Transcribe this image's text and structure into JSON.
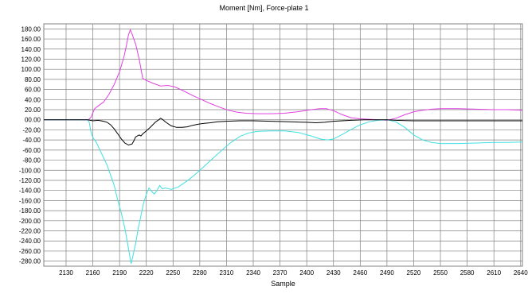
{
  "chart_data": {
    "type": "line",
    "title": "Moment [Nm], Force-plate 1",
    "xlabel": "Sample",
    "ylabel": "",
    "xlim": [
      2105,
      2642
    ],
    "ylim": [
      -290,
      190
    ],
    "grid": true,
    "x_ticks": [
      "2130",
      "2160",
      "2190",
      "2220",
      "2250",
      "2280",
      "2310",
      "2340",
      "2370",
      "2400",
      "2430",
      "2460",
      "2490",
      "2520",
      "2550",
      "2580",
      "2610",
      "2640"
    ],
    "x_tick_values": [
      2130,
      2160,
      2190,
      2220,
      2250,
      2280,
      2310,
      2340,
      2370,
      2400,
      2430,
      2460,
      2490,
      2520,
      2550,
      2580,
      2610,
      2640
    ],
    "y_ticks": [
      "180.00",
      "160.00",
      "140.00",
      "120.00",
      "100.00",
      "80.00",
      "60.00",
      "40.00",
      "20.00",
      "00.00",
      "-20.00",
      "-40.00",
      "-60.00",
      "-80.00",
      "-100.00",
      "-120.00",
      "-140.00",
      "-160.00",
      "-180.00",
      "-200.00",
      "-220.00",
      "-240.00",
      "-260.00",
      "-280.00"
    ],
    "y_tick_values": [
      180,
      160,
      140,
      120,
      100,
      80,
      60,
      40,
      20,
      0,
      -20,
      -40,
      -60,
      -80,
      -100,
      -120,
      -140,
      -160,
      -180,
      -200,
      -220,
      -240,
      -260,
      -280
    ],
    "series": [
      {
        "color": "#e040e0",
        "points": [
          [
            2105,
            0
          ],
          [
            2155,
            0
          ],
          [
            2158,
            5
          ],
          [
            2162,
            22
          ],
          [
            2168,
            30
          ],
          [
            2172,
            35
          ],
          [
            2178,
            50
          ],
          [
            2184,
            70
          ],
          [
            2190,
            95
          ],
          [
            2195,
            125
          ],
          [
            2198,
            150
          ],
          [
            2200,
            168
          ],
          [
            2202,
            178
          ],
          [
            2204,
            170
          ],
          [
            2208,
            150
          ],
          [
            2212,
            120
          ],
          [
            2216,
            82
          ],
          [
            2220,
            78
          ],
          [
            2228,
            72
          ],
          [
            2236,
            67
          ],
          [
            2244,
            68
          ],
          [
            2252,
            65
          ],
          [
            2262,
            57
          ],
          [
            2272,
            48
          ],
          [
            2282,
            40
          ],
          [
            2292,
            32
          ],
          [
            2302,
            25
          ],
          [
            2312,
            19
          ],
          [
            2322,
            15
          ],
          [
            2332,
            13
          ],
          [
            2345,
            12
          ],
          [
            2360,
            12
          ],
          [
            2375,
            13
          ],
          [
            2390,
            16
          ],
          [
            2405,
            20
          ],
          [
            2415,
            22
          ],
          [
            2422,
            22
          ],
          [
            2430,
            18
          ],
          [
            2440,
            10
          ],
          [
            2450,
            4
          ],
          [
            2460,
            2
          ],
          [
            2470,
            1
          ],
          [
            2480,
            0
          ],
          [
            2490,
            -1
          ],
          [
            2500,
            3
          ],
          [
            2510,
            10
          ],
          [
            2520,
            16
          ],
          [
            2530,
            19
          ],
          [
            2540,
            21
          ],
          [
            2550,
            22
          ],
          [
            2570,
            22
          ],
          [
            2590,
            21
          ],
          [
            2610,
            20
          ],
          [
            2625,
            20
          ],
          [
            2642,
            19
          ]
        ]
      },
      {
        "color": "#40e0e0",
        "points": [
          [
            2105,
            0
          ],
          [
            2154,
            0
          ],
          [
            2156,
            -5
          ],
          [
            2158,
            -25
          ],
          [
            2160,
            -35
          ],
          [
            2164,
            -45
          ],
          [
            2168,
            -60
          ],
          [
            2172,
            -75
          ],
          [
            2176,
            -90
          ],
          [
            2180,
            -110
          ],
          [
            2184,
            -130
          ],
          [
            2188,
            -160
          ],
          [
            2192,
            -185
          ],
          [
            2196,
            -215
          ],
          [
            2199,
            -245
          ],
          [
            2201,
            -265
          ],
          [
            2203,
            -285
          ],
          [
            2205,
            -270
          ],
          [
            2208,
            -245
          ],
          [
            2211,
            -215
          ],
          [
            2214,
            -190
          ],
          [
            2217,
            -165
          ],
          [
            2220,
            -148
          ],
          [
            2223,
            -135
          ],
          [
            2226,
            -142
          ],
          [
            2229,
            -147
          ],
          [
            2232,
            -140
          ],
          [
            2235,
            -130
          ],
          [
            2238,
            -137
          ],
          [
            2241,
            -135
          ],
          [
            2248,
            -138
          ],
          [
            2256,
            -133
          ],
          [
            2265,
            -122
          ],
          [
            2275,
            -108
          ],
          [
            2285,
            -92
          ],
          [
            2295,
            -76
          ],
          [
            2305,
            -60
          ],
          [
            2315,
            -45
          ],
          [
            2325,
            -33
          ],
          [
            2335,
            -26
          ],
          [
            2345,
            -23
          ],
          [
            2360,
            -22
          ],
          [
            2375,
            -22
          ],
          [
            2390,
            -25
          ],
          [
            2405,
            -32
          ],
          [
            2415,
            -38
          ],
          [
            2423,
            -40
          ],
          [
            2430,
            -38
          ],
          [
            2440,
            -29
          ],
          [
            2450,
            -19
          ],
          [
            2460,
            -10
          ],
          [
            2470,
            -4
          ],
          [
            2480,
            -1
          ],
          [
            2490,
            0
          ],
          [
            2500,
            -4
          ],
          [
            2510,
            -15
          ],
          [
            2520,
            -30
          ],
          [
            2530,
            -40
          ],
          [
            2540,
            -45
          ],
          [
            2550,
            -47
          ],
          [
            2570,
            -47
          ],
          [
            2590,
            -46
          ],
          [
            2610,
            -45
          ],
          [
            2625,
            -45
          ],
          [
            2642,
            -44
          ]
        ]
      },
      {
        "color": "#000000",
        "points": [
          [
            2105,
            0
          ],
          [
            2154,
            0
          ],
          [
            2160,
            -2
          ],
          [
            2166,
            -1
          ],
          [
            2172,
            -3
          ],
          [
            2176,
            -5
          ],
          [
            2180,
            -10
          ],
          [
            2184,
            -18
          ],
          [
            2188,
            -28
          ],
          [
            2192,
            -38
          ],
          [
            2196,
            -46
          ],
          [
            2200,
            -50
          ],
          [
            2204,
            -48
          ],
          [
            2206,
            -42
          ],
          [
            2208,
            -34
          ],
          [
            2210,
            -32
          ],
          [
            2212,
            -30
          ],
          [
            2214,
            -32
          ],
          [
            2216,
            -28
          ],
          [
            2220,
            -22
          ],
          [
            2225,
            -14
          ],
          [
            2230,
            -5
          ],
          [
            2234,
            0
          ],
          [
            2236,
            3
          ],
          [
            2238,
            1
          ],
          [
            2242,
            -5
          ],
          [
            2248,
            -12
          ],
          [
            2254,
            -15
          ],
          [
            2260,
            -15
          ],
          [
            2266,
            -14
          ],
          [
            2272,
            -11
          ],
          [
            2278,
            -9
          ],
          [
            2285,
            -7
          ],
          [
            2292,
            -6
          ],
          [
            2300,
            -4
          ],
          [
            2310,
            -3
          ],
          [
            2325,
            -2
          ],
          [
            2340,
            -2
          ],
          [
            2360,
            -3
          ],
          [
            2380,
            -4
          ],
          [
            2400,
            -5
          ],
          [
            2410,
            -6
          ],
          [
            2420,
            -5
          ],
          [
            2430,
            -3
          ],
          [
            2440,
            -2
          ],
          [
            2450,
            -1
          ],
          [
            2465,
            0
          ],
          [
            2480,
            0
          ],
          [
            2490,
            0
          ],
          [
            2500,
            -1
          ],
          [
            2520,
            -2
          ],
          [
            2550,
            -2
          ],
          [
            2580,
            -2
          ],
          [
            2610,
            -2
          ],
          [
            2642,
            -2
          ]
        ]
      }
    ]
  }
}
